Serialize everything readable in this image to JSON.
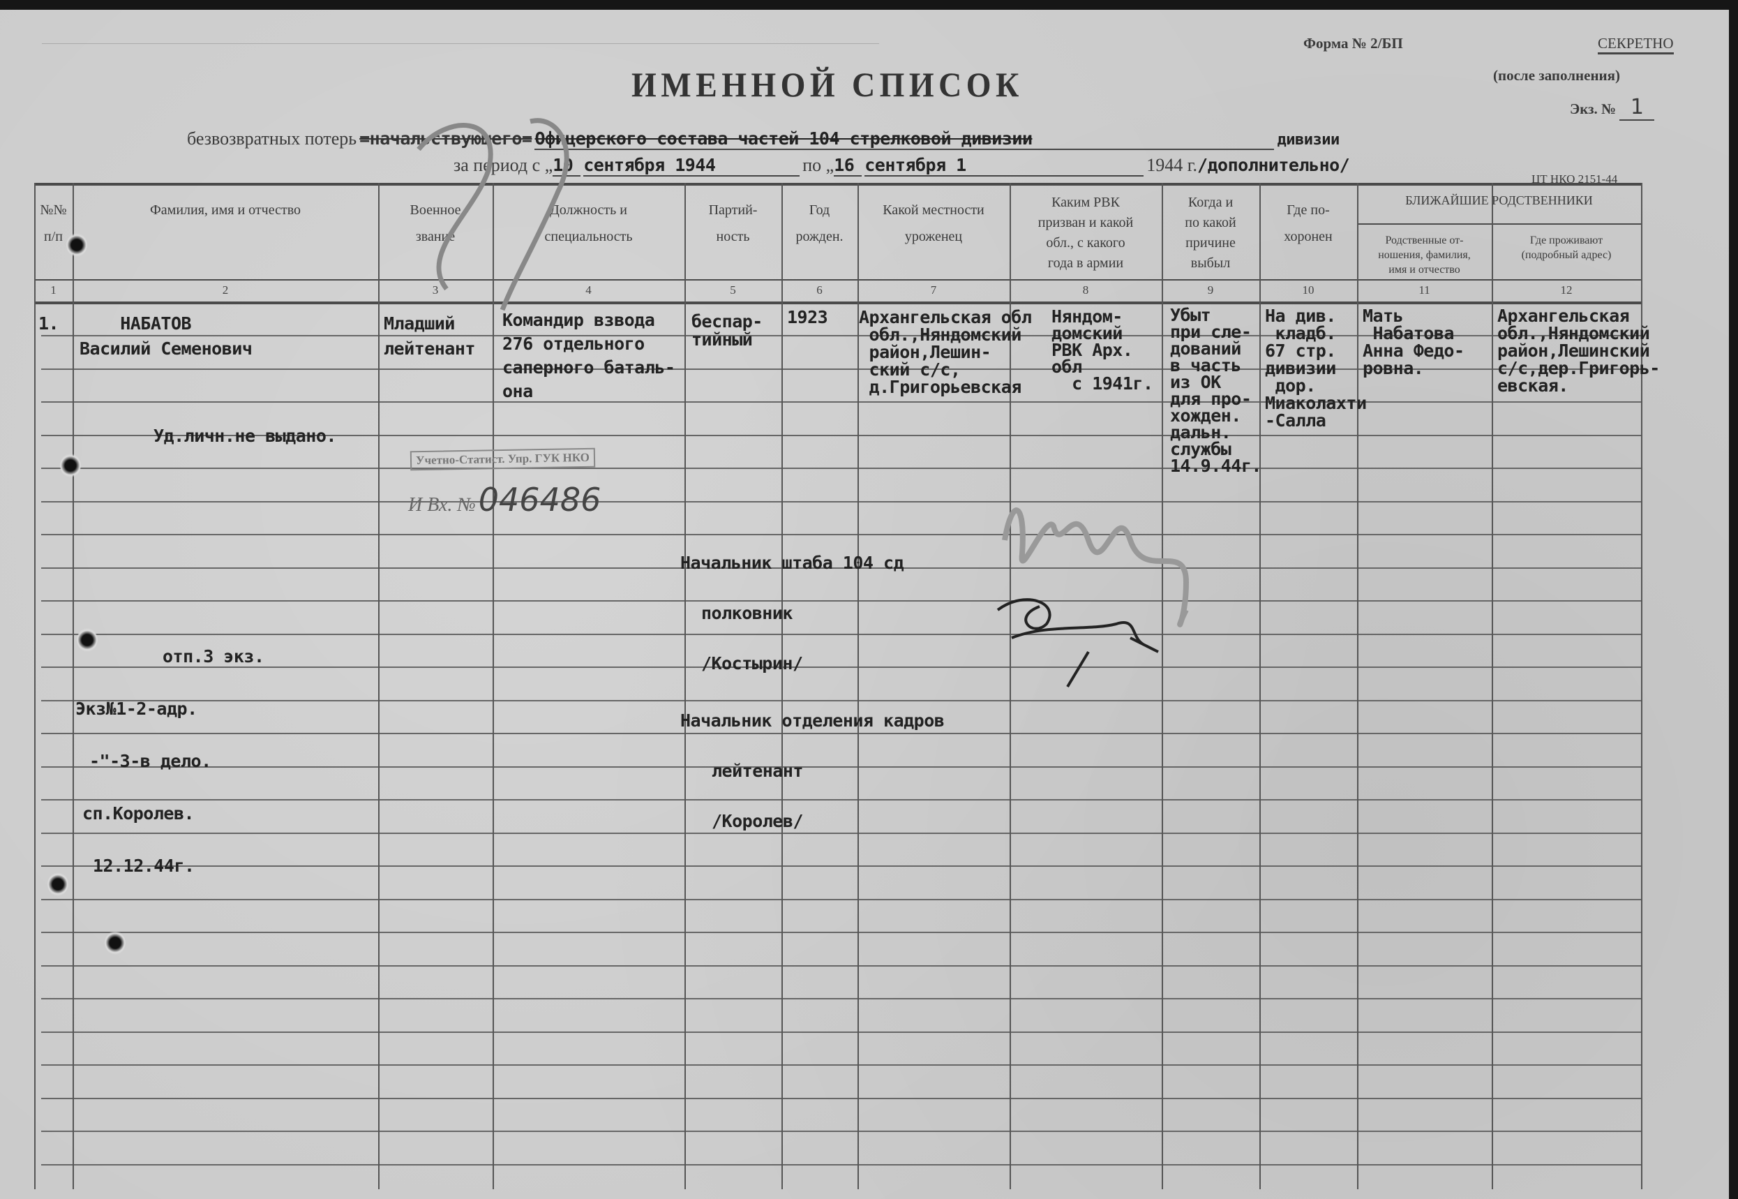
{
  "header": {
    "form_number": "Форма № 2/БП",
    "secret": "СЕКРЕТНО",
    "after_fill": "(после заполнения)",
    "copy_label": "Экз. №",
    "copy_number": "1",
    "title": "ИМЕННОЙ СПИСОК",
    "losses_label": "безвозвратных потерь",
    "struck_text": "=начальствующего=",
    "unit_text": "Офицерского состава частей 104 стрелковой дивизии",
    "division_label": "дивизии",
    "period_label": "за период с „",
    "period_from_day": "10",
    "period_from_text": "сентября 1944",
    "period_to_label": "по „",
    "period_to_day": "16",
    "period_to_text": "сентября 1",
    "year_label": "1944 г.",
    "additional": "/дополнительно/",
    "form_code": "ЦТ НКО 2151-44"
  },
  "table": {
    "group_header": "БЛИЖАЙШИЕ РОДСТВЕННИКИ",
    "columns": [
      {
        "number": "1",
        "label": [
          "№№",
          "п/п"
        ]
      },
      {
        "number": "2",
        "label": [
          "Фамилия, имя и отчество"
        ]
      },
      {
        "number": "3",
        "label": [
          "Военное",
          "звание"
        ]
      },
      {
        "number": "4",
        "label": [
          "Должность и",
          "специальность"
        ]
      },
      {
        "number": "5",
        "label": [
          "Партий-",
          "ность"
        ]
      },
      {
        "number": "6",
        "label": [
          "Год",
          "рожден."
        ]
      },
      {
        "number": "7",
        "label": [
          "Какой местности",
          "уроженец"
        ]
      },
      {
        "number": "8",
        "label": [
          "Каким РВК",
          "призван и какой",
          "обл., с какого",
          "года в армии"
        ]
      },
      {
        "number": "9",
        "label": [
          "Когда и",
          "по какой",
          "причине",
          "выбыл"
        ]
      },
      {
        "number": "10",
        "label": [
          "Где по-",
          "хоронен"
        ]
      },
      {
        "number": "11",
        "label": [
          "Родственные от-",
          "ношения, фамилия,",
          "имя и отчество"
        ]
      },
      {
        "number": "12",
        "label": [
          "Где проживают",
          "(подробный адрес)"
        ]
      }
    ],
    "rows": [
      {
        "cells": [
          [
            "1."
          ],
          [
            "    НАБАТОВ",
            "Василий Семенович"
          ],
          [
            "Младший",
            "лейтенант"
          ],
          [
            "Командир взвода",
            "276 отдельного",
            "саперного баталь-",
            "она"
          ],
          [
            "беспар-",
            "тийный"
          ],
          [
            "1923"
          ],
          [
            "Архангельская обл",
            " обл.,Няндомский",
            " район,Лешин-",
            " ский с/с,",
            " д.Григорьевская"
          ],
          [
            "Няндом-",
            "домский",
            "",
            "РВК Арх.",
            "обл",
            "  с 1941г."
          ],
          [
            "Убыт",
            "при сле-",
            "дований",
            "в часть",
            "из ОК",
            "для про-",
            "хожден.",
            "дальн.",
            "службы",
            "14.9.44г."
          ],
          [
            "На див.",
            " кладб.",
            "67 стр.",
            "дивизии",
            " дор.",
            "Миаколахти",
            "-Салла"
          ],
          [
            "Мать",
            " Набатова",
            "Анна Федо-",
            "ровна."
          ],
          [
            "Архангельская",
            "обл.,Няндомский",
            "район,Лешинский",
            "с/с,дер.Григорь-",
            "евская."
          ]
        ]
      }
    ]
  },
  "notes": {
    "id_card": "Уд.личн.не выдано.",
    "copies": [
      "отп.3 экз.",
      "Экз№1-2-адр.",
      "-\"-3-в дело.",
      "сп.Королев.",
      "12.12.44г."
    ]
  },
  "stamp": {
    "label": "Учетно-Статист. Упр. ГУК НКО",
    "incoming_prefix": "И Вх. №",
    "incoming_number": "046486"
  },
  "signatures": {
    "chief_title": "Начальник штаба 104 сд",
    "chief_rank": "полковник",
    "chief_name": "/Костырин/",
    "hr_title": "Начальник отделения кадров",
    "hr_rank": "лейтенант",
    "hr_name": "/Королев/"
  }
}
